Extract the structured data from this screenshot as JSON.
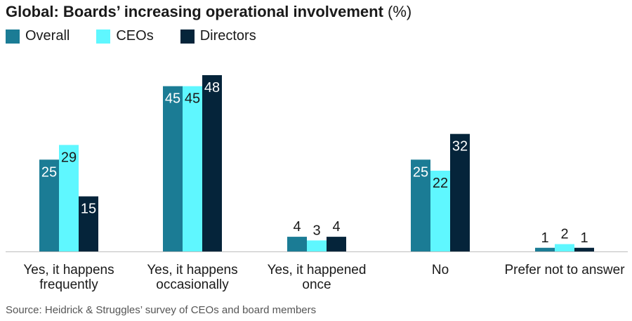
{
  "chart_data": {
    "type": "bar",
    "title_bold": "Global: Boards’ increasing operational involvement",
    "title_unit": "(%)",
    "categories": [
      [
        "Yes, it happens",
        "frequently"
      ],
      [
        "Yes, it happens",
        "occasionally"
      ],
      [
        "Yes, it happened",
        "once"
      ],
      [
        "No"
      ],
      [
        "Prefer not to answer"
      ]
    ],
    "series": [
      {
        "name": "Overall",
        "color": "#1b7c95",
        "values": [
          25,
          45,
          4,
          25,
          1
        ]
      },
      {
        "name": "CEOs",
        "color": "#5ff7ff",
        "values": [
          29,
          45,
          3,
          22,
          2
        ]
      },
      {
        "name": "Directors",
        "color": "#05243a",
        "values": [
          15,
          48,
          4,
          32,
          1
        ]
      }
    ],
    "ylim": [
      0,
      48
    ],
    "xlabel": "",
    "ylabel": "",
    "grid": false,
    "legend": "top-left"
  },
  "source": "Source: Heidrick & Struggles’ survey of CEOs and board members"
}
